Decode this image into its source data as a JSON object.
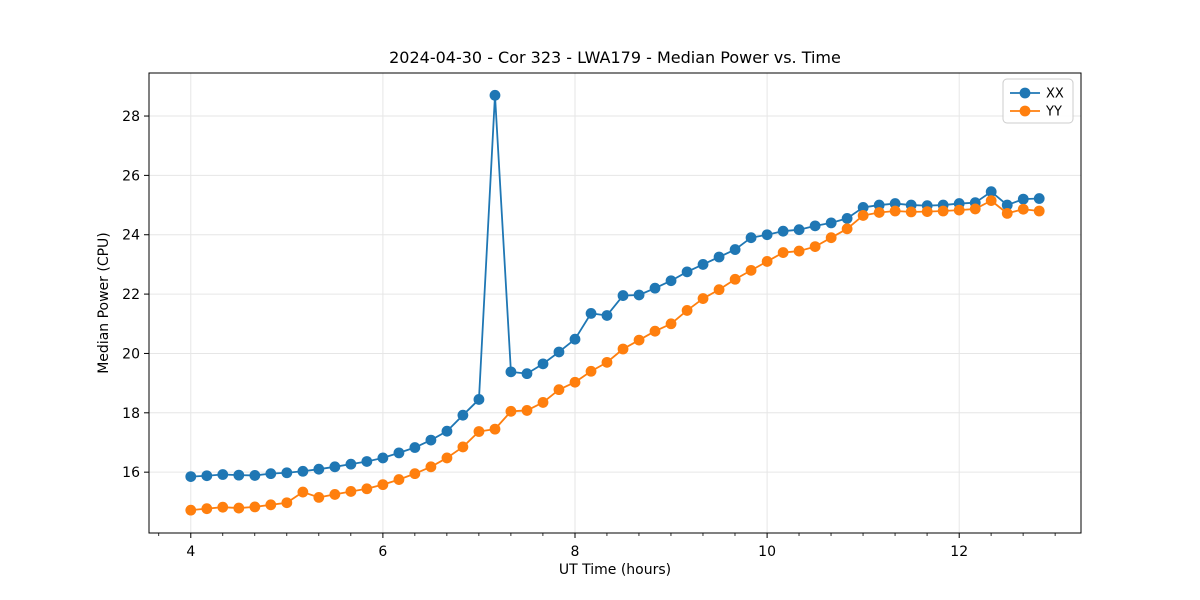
{
  "chart_data": {
    "type": "line",
    "title": "2024-04-30 - Cor 323 - LWA179 - Median Power vs. Time",
    "xlabel": "UT Time (hours)",
    "ylabel": "Median Power (CPU)",
    "xlim": [
      3.565,
      13.268
    ],
    "ylim": [
      13.95,
      29.45
    ],
    "xticks": [
      4,
      6,
      8,
      10,
      12
    ],
    "yticks": [
      16,
      18,
      20,
      22,
      24,
      26,
      28
    ],
    "minor_xtick_step": 0.3333,
    "grid": true,
    "legend_position": "upper right",
    "background": "#ffffff",
    "grid_color": "#e6e6e6",
    "spine_color": "#000000",
    "x": [
      4.0,
      4.167,
      4.333,
      4.5,
      4.667,
      4.833,
      5.0,
      5.167,
      5.333,
      5.5,
      5.667,
      5.833,
      6.0,
      6.167,
      6.333,
      6.5,
      6.667,
      6.833,
      7.0,
      7.167,
      7.333,
      7.5,
      7.667,
      7.833,
      8.0,
      8.167,
      8.333,
      8.5,
      8.667,
      8.833,
      9.0,
      9.167,
      9.333,
      9.5,
      9.667,
      9.833,
      10.0,
      10.167,
      10.333,
      10.5,
      10.667,
      10.833,
      11.0,
      11.167,
      11.333,
      11.5,
      11.667,
      11.833,
      12.0,
      12.167,
      12.333,
      12.5,
      12.667,
      12.833
    ],
    "series": [
      {
        "name": "XX",
        "color": "#1f77b4",
        "values": [
          15.85,
          15.88,
          15.92,
          15.9,
          15.89,
          15.95,
          15.98,
          16.03,
          16.1,
          16.18,
          16.27,
          16.36,
          16.48,
          16.65,
          16.83,
          17.08,
          17.38,
          17.92,
          18.45,
          28.7,
          19.38,
          19.32,
          19.65,
          20.05,
          20.48,
          21.35,
          21.28,
          21.95,
          21.97,
          22.2,
          22.45,
          22.75,
          23.0,
          23.25,
          23.5,
          23.9,
          24.0,
          24.12,
          24.17,
          24.3,
          24.4,
          24.55,
          24.92,
          25.0,
          25.05,
          25.0,
          24.98,
          25.0,
          25.05,
          25.08,
          25.45,
          25.0,
          25.2,
          25.22
        ]
      },
      {
        "name": "YY",
        "color": "#ff7f0e",
        "values": [
          14.72,
          14.77,
          14.82,
          14.79,
          14.83,
          14.9,
          14.97,
          15.33,
          15.15,
          15.25,
          15.35,
          15.44,
          15.58,
          15.75,
          15.95,
          16.18,
          16.48,
          16.85,
          17.37,
          17.45,
          18.05,
          18.08,
          18.35,
          18.78,
          19.03,
          19.4,
          19.7,
          20.15,
          20.45,
          20.75,
          21.0,
          21.45,
          21.85,
          22.15,
          22.5,
          22.8,
          23.1,
          23.4,
          23.45,
          23.6,
          23.9,
          24.2,
          24.65,
          24.75,
          24.8,
          24.77,
          24.78,
          24.8,
          24.83,
          24.87,
          25.15,
          24.72,
          24.86,
          24.8
        ]
      }
    ]
  }
}
